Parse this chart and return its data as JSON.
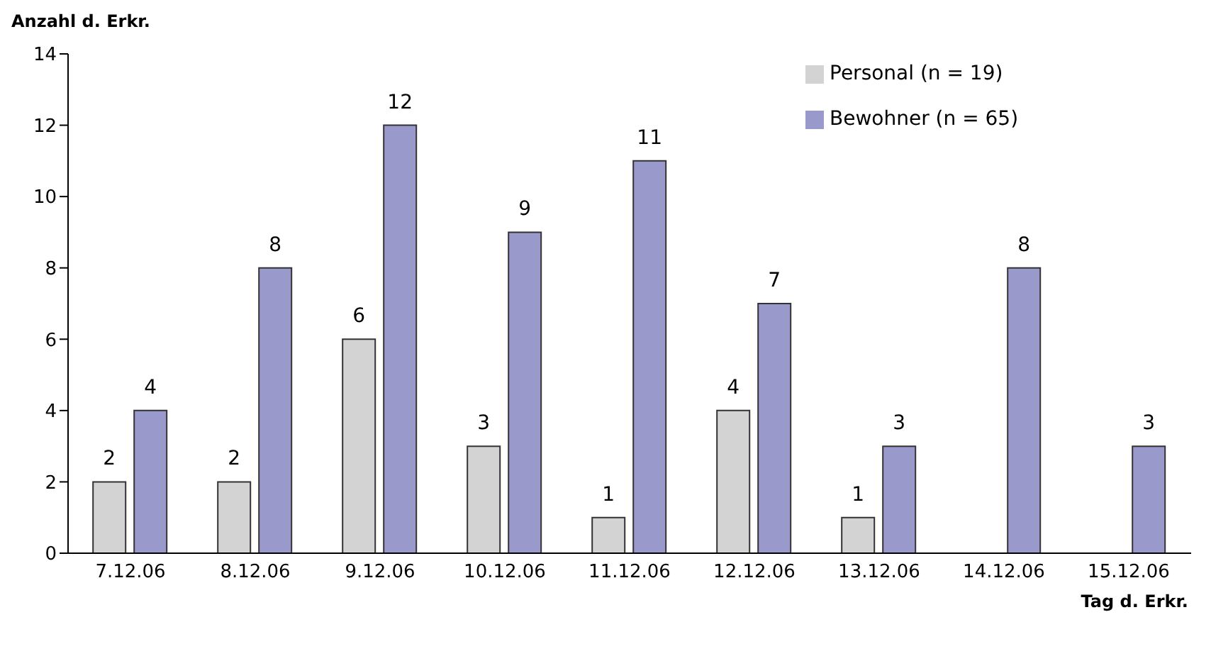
{
  "chart_data": {
    "type": "bar",
    "ylabel": "Anzahl d. Erkr.",
    "xlabel": "Tag d. Erkr.",
    "categories": [
      "7.12.06",
      "8.12.06",
      "9.12.06",
      "10.12.06",
      "11.12.06",
      "12.12.06",
      "13.12.06",
      "14.12.06",
      "15.12.06"
    ],
    "series": [
      {
        "name": "Personal (n = 19)",
        "color": "#d3d3d3",
        "values": [
          2,
          2,
          6,
          3,
          1,
          4,
          1,
          null,
          null
        ]
      },
      {
        "name": "Bewohner (n = 65)",
        "color": "#9999cc",
        "values": [
          4,
          8,
          12,
          9,
          11,
          7,
          3,
          8,
          3
        ]
      }
    ],
    "ylim": [
      0,
      14
    ],
    "yticks": [
      0,
      2,
      4,
      6,
      8,
      10,
      12,
      14
    ],
    "data_labels": true,
    "legend": "top right",
    "grid": false
  }
}
